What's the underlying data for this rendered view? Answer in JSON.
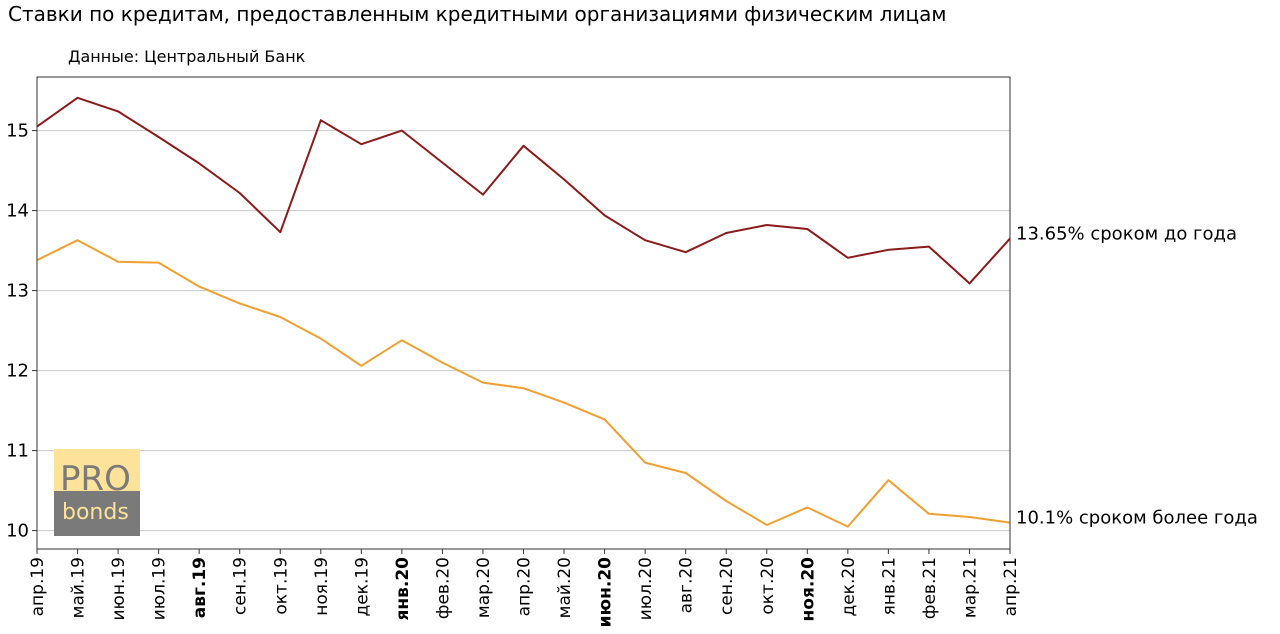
{
  "title": "Ставки по кредитам, предоставленным кредитными организациями физическим лицам",
  "subtitle": "Данные: Центральный Банк",
  "logo": {
    "line1": "PRO",
    "line2": "bonds"
  },
  "chart_data": {
    "type": "line",
    "title": "Ставки по кредитам, предоставленным кредитными организациями физическим лицам",
    "subtitle": "Данные: Центральный Банк",
    "xlabel": "",
    "ylabel": "",
    "categories": [
      "апр.19",
      "май.19",
      "июн.19",
      "июл.19",
      "авг.19",
      "сен.19",
      "окт.19",
      "ноя.19",
      "дек.19",
      "янв.20",
      "фев.20",
      "мар.20",
      "апр.20",
      "май.20",
      "июн.20",
      "июл.20",
      "авг.20",
      "сен.20",
      "окт.20",
      "ноя.20",
      "дек.20",
      "янв.21",
      "фев.21",
      "мар.21",
      "апр.21"
    ],
    "bold_categories": [
      "авг.19",
      "янв.20",
      "июн.20",
      "ноя.20"
    ],
    "yticks": [
      10,
      11,
      12,
      13,
      14,
      15
    ],
    "ylim": [
      9.77,
      15.67
    ],
    "grid": "horizontal",
    "series": [
      {
        "end_label": "13.65% сроком до года",
        "color": "#8b1a1a",
        "values": [
          15.05,
          15.41,
          15.24,
          14.92,
          14.59,
          14.22,
          13.73,
          15.13,
          14.83,
          15.0,
          14.6,
          14.2,
          14.81,
          14.39,
          13.94,
          13.63,
          13.48,
          13.72,
          13.82,
          13.77,
          13.41,
          13.51,
          13.55,
          13.09,
          13.65
        ]
      },
      {
        "end_label": "10.1% сроком более года",
        "color": "#f0a030",
        "values": [
          13.38,
          13.63,
          13.36,
          13.35,
          13.05,
          12.84,
          12.67,
          12.4,
          12.06,
          12.38,
          12.1,
          11.85,
          11.78,
          11.6,
          11.39,
          10.85,
          10.72,
          10.37,
          10.07,
          10.29,
          10.05,
          10.63,
          10.21,
          10.17,
          10.1
        ]
      }
    ]
  }
}
